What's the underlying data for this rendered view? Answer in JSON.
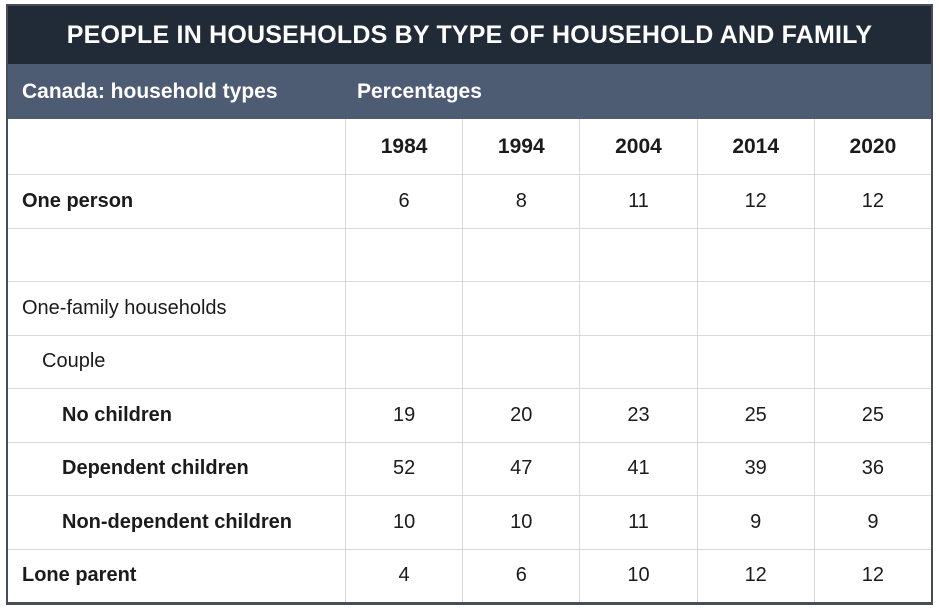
{
  "title": "PEOPLE IN HOUSEHOLDS BY TYPE OF HOUSEHOLD AND FAMILY",
  "subtitle": {
    "left": "Canada: household types",
    "right": "Percentages"
  },
  "colors": {
    "title_bg": "#212b38",
    "subtitle_bg": "#4d5c73",
    "header_text": "#ffffff",
    "body_text": "#1b1b1b",
    "grid_line": "#d9d9d9",
    "outer_border": "#474c55"
  },
  "chart_data": {
    "type": "table",
    "title": "PEOPLE IN HOUSEHOLDS BY TYPE OF HOUSEHOLD AND FAMILY",
    "region_label": "Canada: household types",
    "unit_label": "Percentages",
    "columns": [
      "1984",
      "1994",
      "2004",
      "2014",
      "2020"
    ],
    "rows": [
      {
        "label": "One person",
        "values": [
          "6",
          "8",
          "11",
          "12",
          "12"
        ]
      },
      {
        "label": "",
        "values": [
          "",
          "",
          "",
          "",
          ""
        ]
      },
      {
        "label": "One-family households",
        "values": [
          "",
          "",
          "",
          "",
          ""
        ]
      },
      {
        "label": "Couple",
        "values": [
          "",
          "",
          "",
          "",
          ""
        ]
      },
      {
        "label": "No children",
        "values": [
          "19",
          "20",
          "23",
          "25",
          "25"
        ]
      },
      {
        "label": "Dependent children",
        "values": [
          "52",
          "47",
          "41",
          "39",
          "36"
        ]
      },
      {
        "label": "Non-dependent children",
        "values": [
          "10",
          "10",
          "11",
          "9",
          "9"
        ]
      },
      {
        "label": "Lone parent",
        "values": [
          "4",
          "6",
          "10",
          "12",
          "12"
        ]
      }
    ]
  }
}
